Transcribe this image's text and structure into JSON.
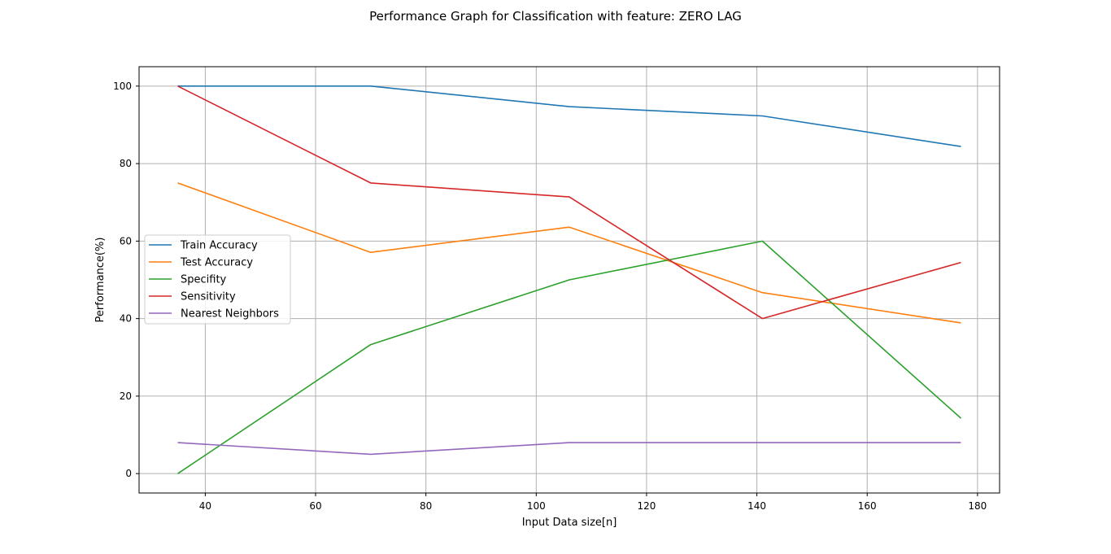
{
  "figure": {
    "title": "Performance Graph for Classification with feature: ZERO LAG"
  },
  "chart_data": {
    "type": "line",
    "title": "Performance Graph for Classification with feature: ZERO LAG",
    "xlabel": "Input Data size[n]",
    "ylabel": "Performance(%)",
    "xlim": [
      28,
      184
    ],
    "ylim": [
      -5,
      105
    ],
    "xticks": [
      40,
      60,
      80,
      100,
      120,
      140,
      160,
      180
    ],
    "yticks": [
      0,
      20,
      40,
      60,
      80,
      100
    ],
    "grid": true,
    "legend_position": "center-left",
    "x": [
      35,
      70,
      106,
      141,
      177
    ],
    "series": [
      {
        "name": "Train Accuracy",
        "color": "#1f77b4",
        "values": [
          100,
          100,
          94.7,
          92.3,
          84.4
        ]
      },
      {
        "name": "Test Accuracy",
        "color": "#ff7f0e",
        "values": [
          75,
          57.1,
          63.6,
          46.7,
          38.9
        ]
      },
      {
        "name": "Specifity",
        "color": "#2ca02c",
        "values": [
          0,
          33.3,
          50,
          60,
          14.3
        ]
      },
      {
        "name": "Sensitivity",
        "color": "#d62728",
        "values": [
          100,
          75,
          71.4,
          40,
          54.5
        ]
      },
      {
        "name": "Nearest Neighbors",
        "color": "#9467bd",
        "values": [
          8,
          5,
          8,
          8,
          8
        ]
      }
    ]
  }
}
